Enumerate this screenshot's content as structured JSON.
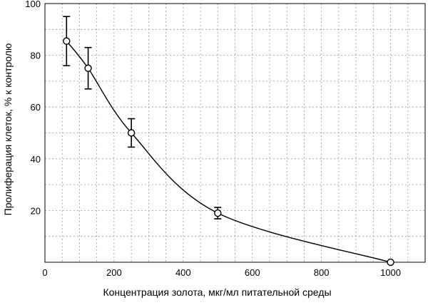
{
  "chart_data": {
    "type": "line",
    "xlabel": "Концентрация золота, мкг/мл питательной среды",
    "ylabel": "Пролиферация клеток, % к контролю",
    "xlim": [
      0,
      1100
    ],
    "ylim": [
      0,
      100
    ],
    "xticks": [
      0,
      200,
      400,
      600,
      800,
      1000
    ],
    "yticks": [
      20,
      40,
      60,
      80,
      100
    ],
    "x_minor_step": 50,
    "y_minor_step": 10,
    "grid": true,
    "series": [
      {
        "x": [
          62.5,
          125,
          250,
          500,
          1000
        ],
        "y": [
          85.5,
          75,
          50,
          19,
          0
        ],
        "err": [
          9.5,
          8,
          5.5,
          2.2,
          0
        ],
        "marker": "open-circle",
        "color": "#000000"
      }
    ]
  }
}
